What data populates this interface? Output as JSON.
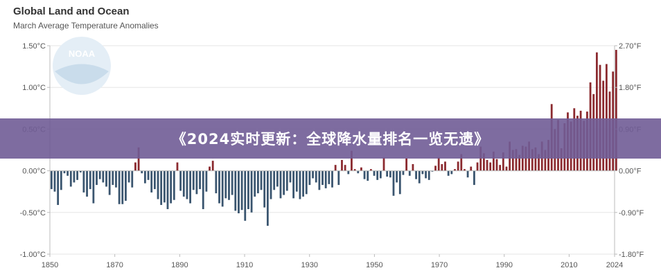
{
  "chart_data": {
    "type": "bar",
    "title": "Global Land and Ocean",
    "subtitle": "March Average Temperature Anomalies",
    "watermark_text": "NOAA",
    "x_start": 1850,
    "x_end": 2024,
    "xlim": [
      1850,
      2024
    ],
    "ylim_c": [
      -1.0,
      1.5
    ],
    "ylim_f": [
      -1.8,
      2.7
    ],
    "y_ticks_left": [
      "1.50°C",
      "1.00°C",
      "0.50°C",
      "0.00°C",
      "-0.50°C",
      "-1.00°C"
    ],
    "y_ticks_right": [
      "2.70°F",
      "1.80°F",
      "0.90°F",
      "0.00°F",
      "-0.90°F",
      "-1.80°F"
    ],
    "x_ticks": [
      "1850",
      "1870",
      "1890",
      "1910",
      "1930",
      "1950",
      "1970",
      "1990",
      "2010",
      "2024"
    ],
    "positive_color": "#8b2a2f",
    "negative_color": "#3a556f",
    "grid": true,
    "values": [
      -0.22,
      -0.25,
      -0.41,
      -0.23,
      -0.03,
      -0.06,
      -0.19,
      -0.14,
      -0.11,
      -0.02,
      -0.26,
      -0.31,
      -0.22,
      -0.39,
      -0.17,
      -0.1,
      -0.14,
      -0.19,
      -0.29,
      -0.17,
      -0.2,
      -0.4,
      -0.4,
      -0.36,
      -0.14,
      -0.2,
      0.1,
      0.28,
      -0.03,
      -0.15,
      -0.11,
      -0.26,
      -0.22,
      -0.34,
      -0.41,
      -0.38,
      -0.46,
      -0.39,
      -0.35,
      0.1,
      -0.24,
      -0.31,
      -0.34,
      -0.39,
      -0.23,
      -0.28,
      -0.22,
      -0.46,
      -0.25,
      0.05,
      0.12,
      -0.27,
      -0.39,
      -0.43,
      -0.33,
      -0.35,
      -0.29,
      -0.48,
      -0.51,
      -0.47,
      -0.6,
      -0.46,
      -0.5,
      -0.31,
      -0.27,
      -0.23,
      -0.44,
      -0.66,
      -0.34,
      -0.23,
      -0.19,
      -0.33,
      -0.29,
      -0.24,
      -0.14,
      -0.33,
      -0.25,
      -0.34,
      -0.31,
      -0.28,
      -0.17,
      -0.09,
      -0.14,
      -0.23,
      -0.17,
      -0.21,
      -0.16,
      -0.2,
      0.07,
      -0.17,
      0.13,
      0.07,
      -0.04,
      0.24,
      0.02,
      -0.03,
      0.04,
      -0.1,
      -0.12,
      0.02,
      -0.06,
      -0.11,
      -0.09,
      0.16,
      -0.07,
      -0.08,
      -0.3,
      -0.14,
      -0.28,
      -0.05,
      0.15,
      -0.06,
      0.08,
      -0.1,
      -0.15,
      -0.04,
      -0.09,
      -0.11,
      -0.01,
      0.06,
      0.16,
      0.08,
      0.11,
      -0.06,
      -0.04,
      0.02,
      0.11,
      0.2,
      0.02,
      -0.08,
      0.05,
      -0.17,
      0.1,
      0.29,
      0.21,
      0.13,
      0.1,
      0.23,
      0.14,
      0.07,
      0.22,
      0.05,
      0.35,
      0.25,
      0.26,
      0.19,
      0.3,
      0.29,
      0.35,
      0.26,
      0.28,
      0.2,
      0.35,
      0.25,
      0.37,
      0.8,
      0.5,
      0.61,
      0.27,
      0.57,
      0.7,
      0.59,
      0.75,
      0.66,
      0.72,
      0.6,
      0.71,
      1.06,
      0.92,
      1.42,
      1.27,
      1.08,
      1.28,
      0.95,
      1.19,
      1.45
    ]
  },
  "banner": {
    "text": "《2024实时更新：全球降水量排名一览无遗》"
  }
}
